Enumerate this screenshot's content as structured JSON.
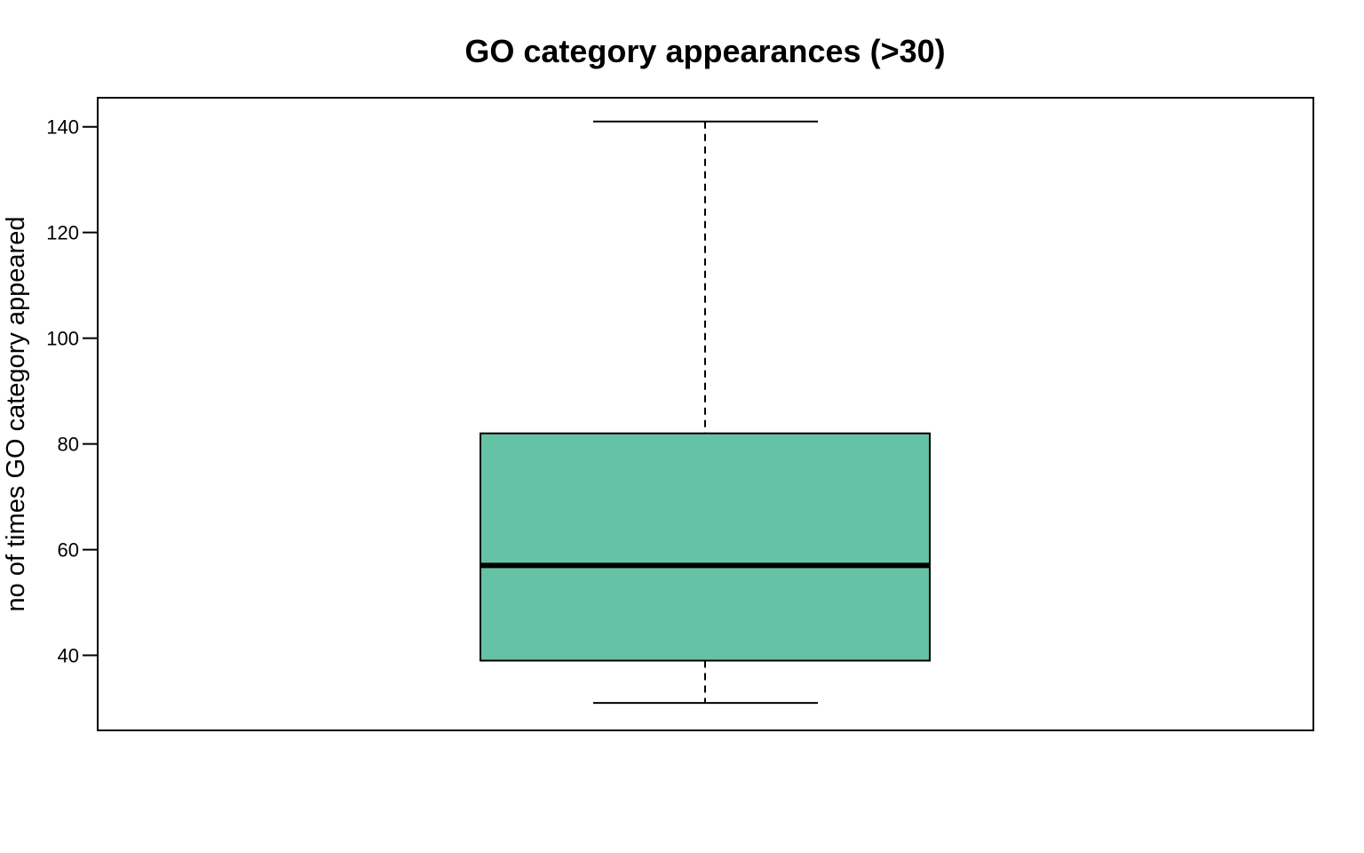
{
  "chart_data": {
    "type": "box",
    "title": "GO category appearances (>30)",
    "xlabel": "",
    "ylabel": "no of times GO category appeared",
    "ylim": [
      25.8,
      145.5
    ],
    "yticks": [
      40,
      60,
      80,
      100,
      120,
      140
    ],
    "yticklabels": [
      "40",
      "60",
      "80",
      "100",
      "120",
      "140"
    ],
    "grid": false,
    "legend": "none",
    "series": [
      {
        "whisker_low": 31,
        "q1": 39,
        "median": 57,
        "q3": 82,
        "whisker_high": 141
      }
    ],
    "colors": {
      "box_fill": "#66c2a5",
      "stroke": "#000000",
      "background": "#ffffff"
    }
  }
}
